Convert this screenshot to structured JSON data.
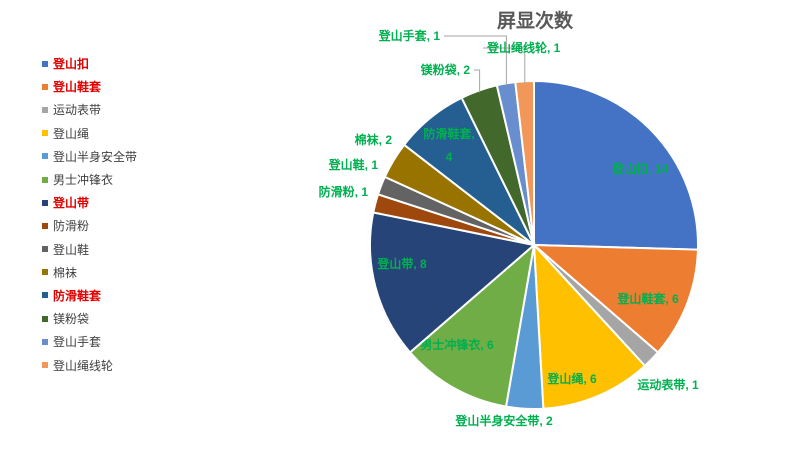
{
  "chart_data": {
    "type": "pie",
    "title": "屏显次数",
    "legend_position": "left",
    "label_color": "#00b050",
    "slices": [
      {
        "name": "登山扣",
        "value": 14,
        "color": "#4472c4",
        "highlight": true
      },
      {
        "name": "登山鞋套",
        "value": 6,
        "color": "#ed7d31",
        "highlight": true
      },
      {
        "name": "运动表带",
        "value": 1,
        "color": "#a5a5a5",
        "highlight": false
      },
      {
        "name": "登山绳",
        "value": 6,
        "color": "#ffc000",
        "highlight": false
      },
      {
        "name": "登山半身安全带",
        "value": 2,
        "color": "#5b9bd5",
        "highlight": false
      },
      {
        "name": "男士冲锋衣",
        "value": 6,
        "color": "#70ad47",
        "highlight": false
      },
      {
        "name": "登山带",
        "value": 8,
        "color": "#264478",
        "highlight": true
      },
      {
        "name": "防滑粉",
        "value": 1,
        "color": "#9e480e",
        "highlight": false
      },
      {
        "name": "登山鞋",
        "value": 1,
        "color": "#636363",
        "highlight": false
      },
      {
        "name": "棉袜",
        "value": 2,
        "color": "#997300",
        "highlight": false
      },
      {
        "name": "防滑鞋套",
        "value": 4,
        "color": "#255e91",
        "highlight": true
      },
      {
        "name": "镁粉袋",
        "value": 2,
        "color": "#43682b",
        "highlight": false
      },
      {
        "name": "登山手套",
        "value": 1,
        "color": "#698ed0",
        "highlight": false
      },
      {
        "name": "登山绳线轮",
        "value": 1,
        "color": "#f1975a",
        "highlight": false
      }
    ]
  }
}
